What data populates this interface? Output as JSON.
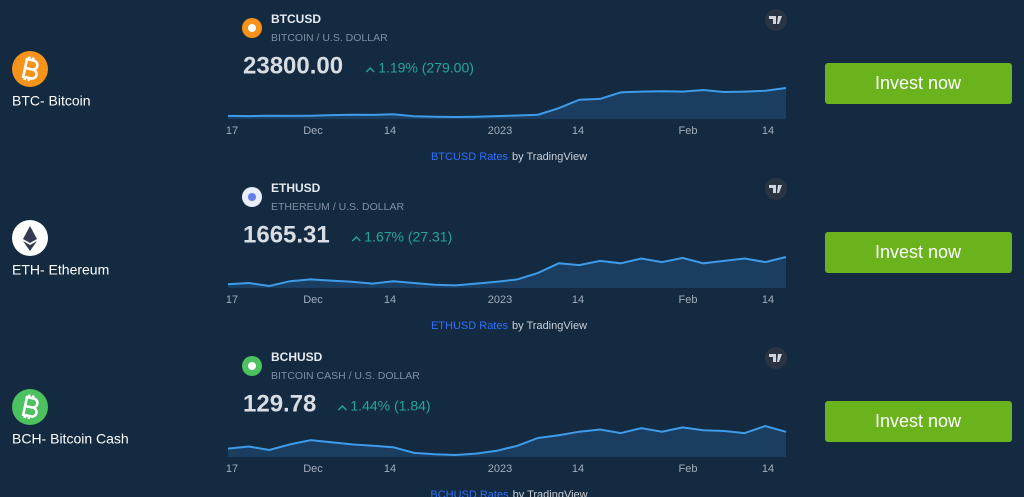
{
  "rows": [
    {
      "label": "BTC- Bitcoin",
      "symbol": "BTCUSD",
      "description": "BITCOIN / U.S. DOLLAR",
      "price": "23800.00",
      "change": "1.19% (279.00)",
      "x_labels": [
        "17",
        "Dec",
        "14",
        "2023",
        "14",
        "Feb",
        "14"
      ],
      "values": [
        16900,
        16850,
        16950,
        16880,
        16930,
        17100,
        17200,
        17150,
        17300,
        16800,
        16700,
        16620,
        16700,
        16850,
        17000,
        17200,
        18800,
        20900,
        21100,
        22700,
        22900,
        23000,
        22900,
        23300,
        22800,
        22900,
        23100,
        23800
      ],
      "rates_link": "BTCUSD Rates",
      "attribution": "by TradingView",
      "button": "Invest now"
    },
    {
      "label": "ETH- Ethereum",
      "symbol": "ETHUSD",
      "description": "ETHEREUM / U.S. DOLLAR",
      "price": "1665.31",
      "change": "1.67% (27.31)",
      "x_labels": [
        "17",
        "Dec",
        "14",
        "2023",
        "14",
        "Feb",
        "14"
      ],
      "values": [
        1210,
        1230,
        1180,
        1260,
        1290,
        1270,
        1250,
        1220,
        1260,
        1230,
        1200,
        1190,
        1220,
        1250,
        1290,
        1400,
        1560,
        1530,
        1600,
        1560,
        1640,
        1580,
        1650,
        1560,
        1600,
        1640,
        1580,
        1665.31
      ],
      "rates_link": "ETHUSD Rates",
      "attribution": "by TradingView",
      "button": "Invest now"
    },
    {
      "label": "BCH- Bitcoin Cash",
      "symbol": "BCHUSD",
      "description": "BITCOIN CASH / U.S. DOLLAR",
      "price": "129.78",
      "change": "1.44% (1.84)",
      "x_labels": [
        "17",
        "Dec",
        "14",
        "2023",
        "14",
        "Feb",
        "14"
      ],
      "values": [
        106,
        109,
        104,
        112,
        118,
        115,
        112,
        110,
        108,
        100,
        98,
        97,
        99,
        103,
        110,
        121,
        125,
        130,
        133,
        128,
        135,
        130,
        136,
        132,
        131,
        128,
        138,
        129.78
      ],
      "rates_link": "BCHUSD Rates",
      "attribution": "by TradingView",
      "button": "Invest now"
    }
  ]
}
